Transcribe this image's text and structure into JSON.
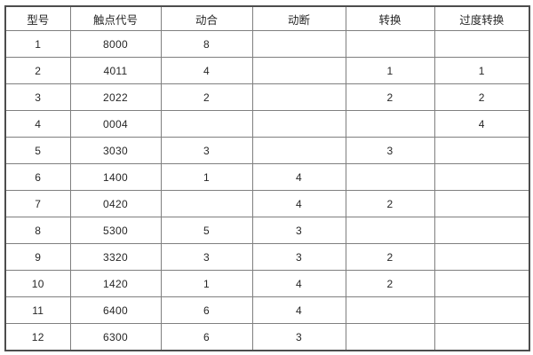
{
  "table": {
    "columns": [
      {
        "key": "model",
        "label": "型号"
      },
      {
        "key": "code",
        "label": "触点代号"
      },
      {
        "key": "no",
        "label": "动合"
      },
      {
        "key": "nc",
        "label": "动断"
      },
      {
        "key": "co",
        "label": "转换"
      },
      {
        "key": "tco",
        "label": "过度转换"
      }
    ],
    "rows": [
      {
        "cells": [
          "1",
          "8000",
          "8",
          "",
          "",
          ""
        ]
      },
      {
        "cells": [
          "2",
          "4011",
          "4",
          "",
          "1",
          "1"
        ]
      },
      {
        "cells": [
          "3",
          "2022",
          "2",
          "",
          "2",
          "2"
        ]
      },
      {
        "cells": [
          "4",
          "0004",
          "",
          "",
          "",
          "4"
        ]
      },
      {
        "cells": [
          "5",
          "3030",
          "3",
          "",
          "3",
          ""
        ]
      },
      {
        "cells": [
          "6",
          "1400",
          "1",
          "4",
          "",
          ""
        ]
      },
      {
        "cells": [
          "7",
          "0420",
          "",
          "4",
          "2",
          ""
        ]
      },
      {
        "cells": [
          "8",
          "5300",
          "5",
          "3",
          "",
          ""
        ]
      },
      {
        "cells": [
          "9",
          "3320",
          "3",
          "3",
          "2",
          ""
        ]
      },
      {
        "cells": [
          "10",
          "1420",
          "1",
          "4",
          "2",
          ""
        ]
      },
      {
        "cells": [
          "11",
          "6400",
          "6",
          "4",
          "",
          ""
        ]
      },
      {
        "cells": [
          "12",
          "6300",
          "6",
          "3",
          "",
          ""
        ]
      }
    ],
    "colors": {
      "background": "#ffffff",
      "border_outer": "#4d4d4d",
      "border_inner": "#7f7f7f",
      "text": "#262626"
    }
  }
}
